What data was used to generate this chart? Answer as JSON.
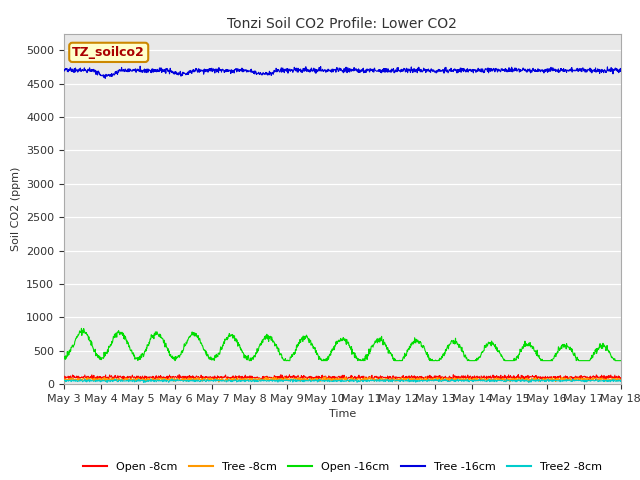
{
  "title": "Tonzi Soil CO2 Profile: Lower CO2",
  "xlabel": "Time",
  "ylabel": "Soil CO2 (ppm)",
  "ylim": [
    0,
    5250
  ],
  "yticks": [
    0,
    500,
    1000,
    1500,
    2000,
    2500,
    3000,
    3500,
    4000,
    4500,
    5000
  ],
  "background_color": "#e8e8e8",
  "legend_label": "TZ_soilco2",
  "legend_box_color": "#ffffcc",
  "legend_box_edge": "#cc8800",
  "legend_text_color": "#aa0000",
  "colors": {
    "open_8cm": "#ff0000",
    "tree_8cm": "#ff9900",
    "open_16cm": "#00dd00",
    "tree_16cm": "#0000dd",
    "tree2_8cm": "#00cccc"
  },
  "labels": {
    "open_8cm": "Open -8cm",
    "tree_8cm": "Tree -8cm",
    "open_16cm": "Open -16cm",
    "tree_16cm": "Tree -16cm",
    "tree2_8cm": "Tree2 -8cm"
  },
  "n_points": 1500,
  "x_start_day": 3,
  "x_end_day": 18,
  "xtick_days": [
    3,
    4,
    5,
    6,
    7,
    8,
    9,
    10,
    11,
    12,
    13,
    14,
    15,
    16,
    17,
    18
  ],
  "title_fontsize": 10,
  "axis_label_fontsize": 8,
  "tick_fontsize": 8,
  "legend_fontsize": 8
}
